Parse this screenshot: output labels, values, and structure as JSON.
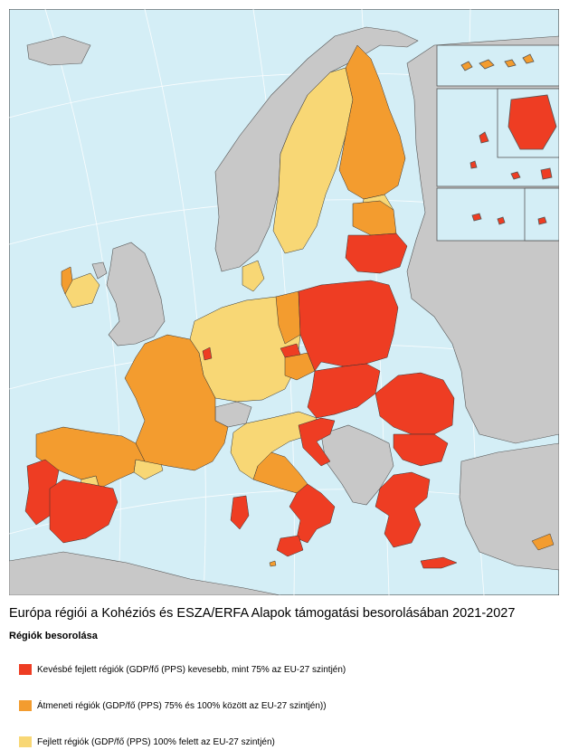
{
  "map": {
    "caption": "Európa régiói a Kohéziós és ESZA/ERFA Alapok támogatási besorolásában 2021-2027",
    "legend_title": "Régiók besorolása",
    "legend": [
      {
        "label": "Kevésbé fejlett régiók (GDP/fő (PPS) kevesebb, mint 75% az  EU-27 szintjén)",
        "color": "#EE3D23"
      },
      {
        "label": "Átmeneti régiók (GDP/fő (PPS) 75% és 100% között az  EU-27 szintjén))",
        "color": "#F39C2F"
      },
      {
        "label": "Fejlett régiók (GDP/fő (PPS) 100% felett az EU-27 szintjén)",
        "color": "#F8D775"
      }
    ],
    "colors": {
      "sea": "#D4EEF6",
      "non_eu_land": "#C8C8C8",
      "border": "#333333"
    }
  }
}
